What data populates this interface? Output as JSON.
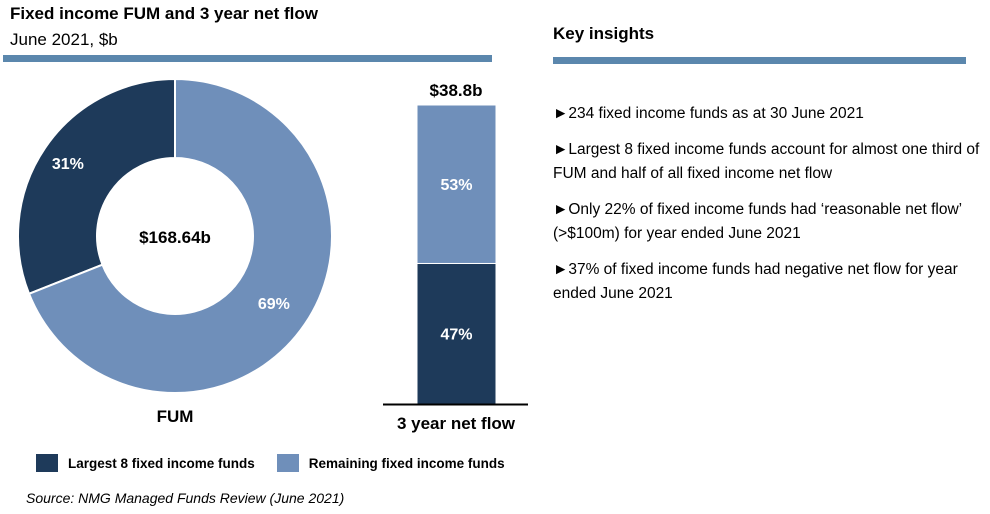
{
  "header": {
    "title": "Fixed income FUM and 3 year net flow",
    "subtitle": "June 2021, $b"
  },
  "colors": {
    "dark": "#1e3a5a",
    "light": "#6f8fba",
    "rule": "#5b87ad"
  },
  "chart_data": [
    {
      "type": "pie",
      "variant": "donut",
      "title": "FUM",
      "center_label": "$168.64b",
      "slices": [
        {
          "name": "Largest 8 fixed income funds",
          "value": 31,
          "label": "31%"
        },
        {
          "name": "Remaining fixed income funds",
          "value": 69,
          "label": "69%"
        }
      ]
    },
    {
      "type": "bar",
      "variant": "stacked-100",
      "categories": [
        "3 year net flow"
      ],
      "total_label": "$38.8b",
      "series": [
        {
          "name": "Largest 8 fixed income funds",
          "values": [
            47
          ],
          "label": "47%"
        },
        {
          "name": "Remaining fixed income funds",
          "values": [
            53
          ],
          "label": "53%"
        }
      ]
    }
  ],
  "legend": [
    "Largest 8 fixed income funds",
    "Remaining fixed income funds"
  ],
  "source": "Source: NMG Managed Funds Review (June 2021)",
  "insights": {
    "title": "Key insights",
    "bullet": "►",
    "items": [
      "234 fixed income funds as at 30 June 2021",
      "Largest 8 fixed income funds account for almost one third of FUM and half of all fixed income net flow",
      "Only 22% of fixed income funds had ‘reasonable net flow’ (>$100m) for year ended June 2021",
      "37% of fixed income funds had negative net flow for year ended June 2021"
    ]
  }
}
